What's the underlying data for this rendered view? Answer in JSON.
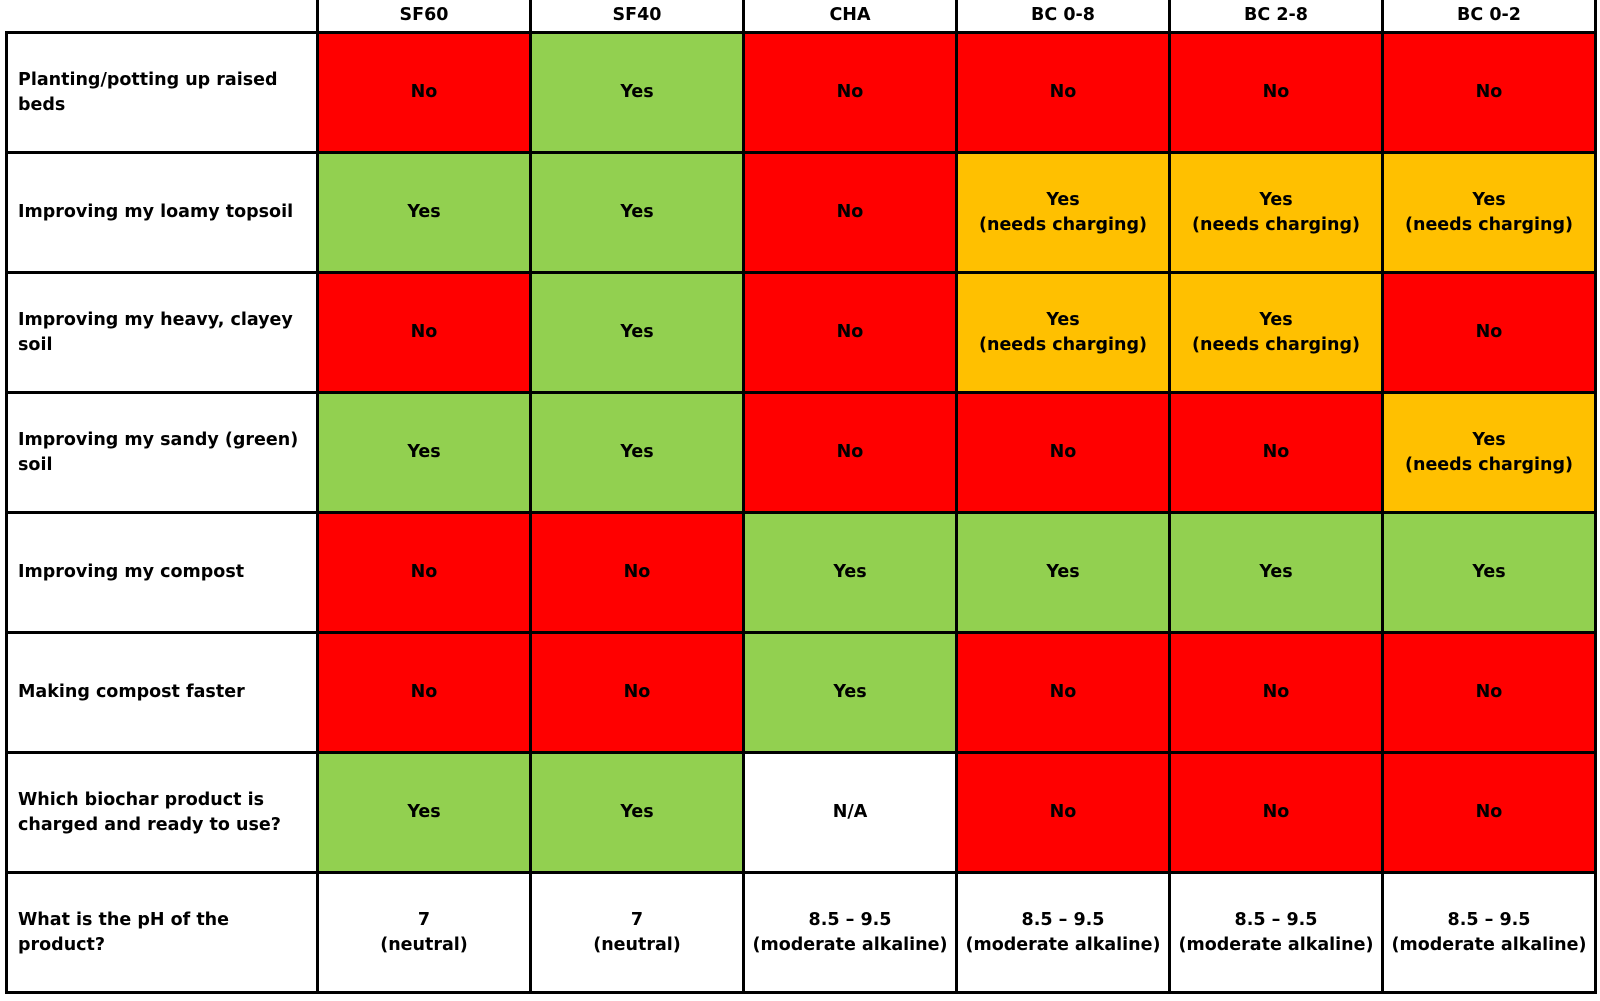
{
  "colors": {
    "no": "#ff0000",
    "yes": "#92d050",
    "partial": "#ffc000",
    "neutral": "#ffffff",
    "border": "#000000"
  },
  "columns": [
    "SF60",
    "SF40",
    "CHA",
    "BC 0-8",
    "BC 2-8",
    "BC 0-2"
  ],
  "rows": [
    {
      "label": "Planting/potting up raised beds",
      "cells": [
        {
          "status": "no",
          "lines": [
            "No"
          ]
        },
        {
          "status": "yes",
          "lines": [
            "Yes"
          ]
        },
        {
          "status": "no",
          "lines": [
            "No"
          ]
        },
        {
          "status": "no",
          "lines": [
            "No"
          ]
        },
        {
          "status": "no",
          "lines": [
            "No"
          ]
        },
        {
          "status": "no",
          "lines": [
            "No"
          ]
        }
      ]
    },
    {
      "label": "Improving my loamy topsoil",
      "cells": [
        {
          "status": "yes",
          "lines": [
            "Yes"
          ]
        },
        {
          "status": "yes",
          "lines": [
            "Yes"
          ]
        },
        {
          "status": "no",
          "lines": [
            "No"
          ]
        },
        {
          "status": "partial",
          "lines": [
            "Yes",
            "(needs charging)"
          ]
        },
        {
          "status": "partial",
          "lines": [
            "Yes",
            "(needs charging)"
          ]
        },
        {
          "status": "partial",
          "lines": [
            "Yes",
            "(needs charging)"
          ]
        }
      ]
    },
    {
      "label": "Improving my heavy, clayey soil",
      "cells": [
        {
          "status": "no",
          "lines": [
            "No"
          ]
        },
        {
          "status": "yes",
          "lines": [
            "Yes"
          ]
        },
        {
          "status": "no",
          "lines": [
            "No"
          ]
        },
        {
          "status": "partial",
          "lines": [
            "Yes",
            "(needs charging)"
          ]
        },
        {
          "status": "partial",
          "lines": [
            "Yes",
            "(needs charging)"
          ]
        },
        {
          "status": "no",
          "lines": [
            "No"
          ]
        }
      ]
    },
    {
      "label": "Improving my sandy (green) soil",
      "cells": [
        {
          "status": "yes",
          "lines": [
            "Yes"
          ]
        },
        {
          "status": "yes",
          "lines": [
            "Yes"
          ]
        },
        {
          "status": "no",
          "lines": [
            "No"
          ]
        },
        {
          "status": "no",
          "lines": [
            "No"
          ]
        },
        {
          "status": "no",
          "lines": [
            "No"
          ]
        },
        {
          "status": "partial",
          "lines": [
            "Yes",
            "(needs charging)"
          ]
        }
      ]
    },
    {
      "label": "Improving my compost",
      "cells": [
        {
          "status": "no",
          "lines": [
            "No"
          ]
        },
        {
          "status": "no",
          "lines": [
            "No"
          ]
        },
        {
          "status": "yes",
          "lines": [
            "Yes"
          ]
        },
        {
          "status": "yes",
          "lines": [
            "Yes"
          ]
        },
        {
          "status": "yes",
          "lines": [
            "Yes"
          ]
        },
        {
          "status": "yes",
          "lines": [
            "Yes"
          ]
        }
      ]
    },
    {
      "label": "Making compost faster",
      "cells": [
        {
          "status": "no",
          "lines": [
            "No"
          ]
        },
        {
          "status": "no",
          "lines": [
            "No"
          ]
        },
        {
          "status": "yes",
          "lines": [
            "Yes"
          ]
        },
        {
          "status": "no",
          "lines": [
            "No"
          ]
        },
        {
          "status": "no",
          "lines": [
            "No"
          ]
        },
        {
          "status": "no",
          "lines": [
            "No"
          ]
        }
      ]
    },
    {
      "label": "Which biochar product is charged and ready to use?",
      "cells": [
        {
          "status": "yes",
          "lines": [
            "Yes"
          ]
        },
        {
          "status": "yes",
          "lines": [
            "Yes"
          ]
        },
        {
          "status": "na",
          "lines": [
            "N/A"
          ]
        },
        {
          "status": "no",
          "lines": [
            "No"
          ]
        },
        {
          "status": "no",
          "lines": [
            "No"
          ]
        },
        {
          "status": "no",
          "lines": [
            "No"
          ]
        }
      ]
    },
    {
      "label": "What is the pH of the product?",
      "cells": [
        {
          "status": "ph",
          "lines": [
            "7",
            "(neutral)"
          ]
        },
        {
          "status": "ph",
          "lines": [
            "7",
            "(neutral)"
          ]
        },
        {
          "status": "ph",
          "lines": [
            "8.5 – 9.5",
            "(moderate alkaline)"
          ]
        },
        {
          "status": "ph",
          "lines": [
            "8.5 – 9.5",
            "(moderate alkaline)"
          ]
        },
        {
          "status": "ph",
          "lines": [
            "8.5 – 9.5",
            "(moderate alkaline)"
          ]
        },
        {
          "status": "ph",
          "lines": [
            "8.5 – 9.5",
            "(moderate alkaline)"
          ]
        }
      ]
    }
  ]
}
